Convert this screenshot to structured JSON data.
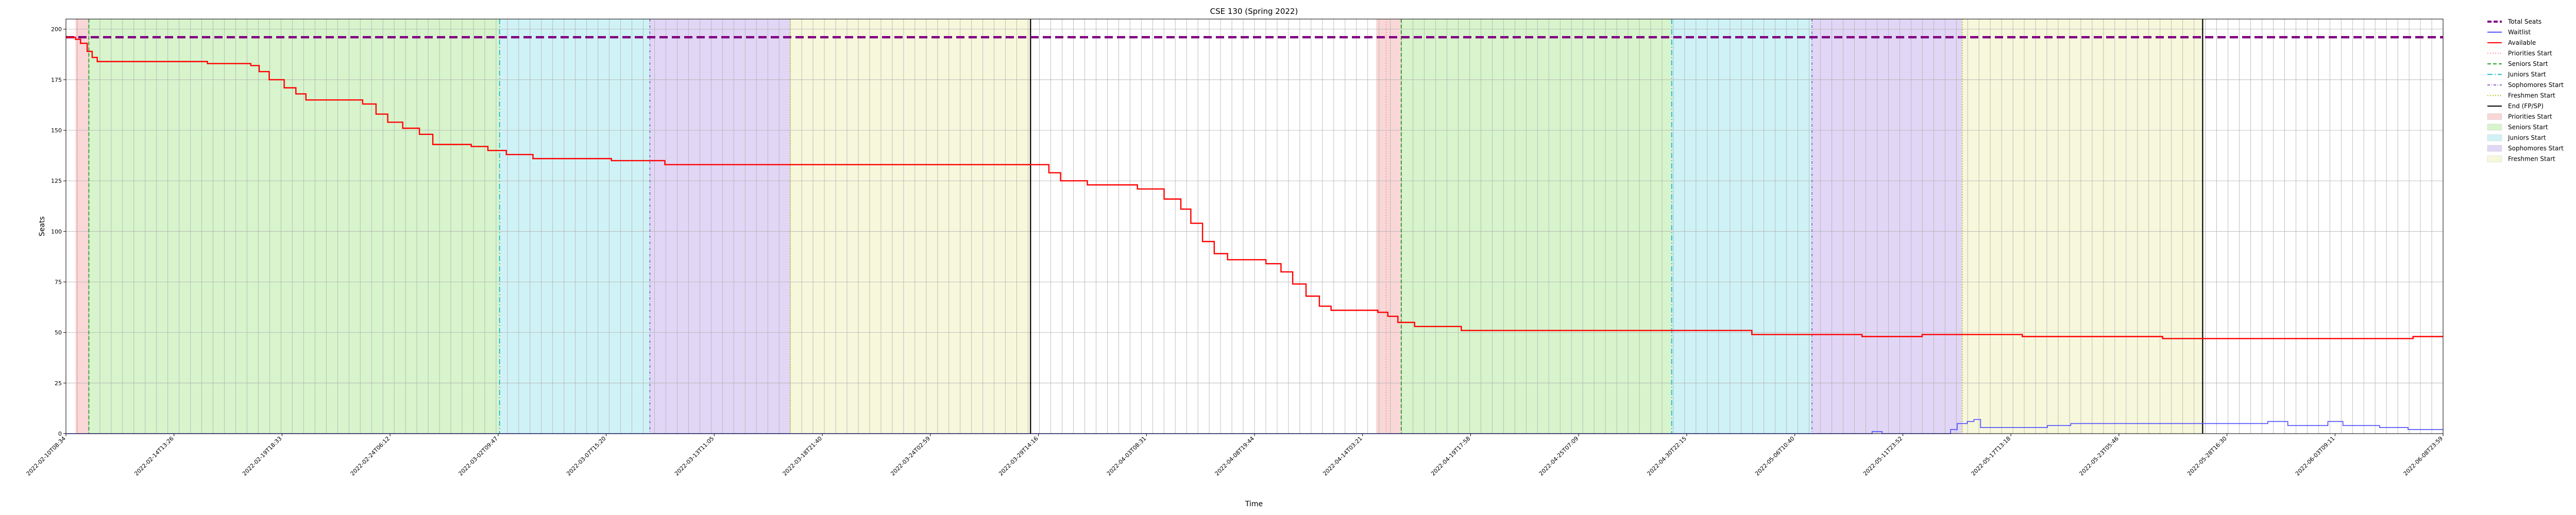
{
  "chart_data": {
    "type": "line",
    "title": "CSE 130 (Spring 2022)",
    "xlabel": "Time",
    "ylabel": "Seats",
    "ylim": [
      0,
      205
    ],
    "yticks": [
      0,
      25,
      50,
      75,
      100,
      125,
      150,
      175,
      200
    ],
    "grid": true,
    "legend_placement": "outside right, top",
    "x_tick_labels": [
      "2022-02-10T08:34",
      "2022-02-14T13:26",
      "2022-02-19T18:33",
      "2022-02-24T06:12",
      "2022-03-02T09:47",
      "2022-03-07T15:20",
      "2022-03-13T11:05",
      "2022-03-18T21:40",
      "2022-03-24T02:59",
      "2022-03-29T14:16",
      "2022-04-03T08:31",
      "2022-04-08T19:44",
      "2022-04-14T03:21",
      "2022-04-19T17:58",
      "2022-04-25T07:09",
      "2022-04-30T22:15",
      "2022-05-06T10:40",
      "2022-05-11T23:52",
      "2022-05-17T13:18",
      "2022-05-23T05:46",
      "2022-05-28T16:30",
      "2022-06-03T09:11",
      "2022-06-08T23:59"
    ],
    "x_domain": [
      "2022-02-10T08:34",
      "2022-06-08T23:59"
    ],
    "series": [
      {
        "name": "Total Seats",
        "color": "#800080",
        "style": "dashed-thick",
        "points": [
          [
            "2022-02-10T08:34",
            196
          ],
          [
            "2022-06-08T23:59",
            196
          ]
        ]
      },
      {
        "name": "Waitlist",
        "color": "#4b4bff",
        "style": "solid",
        "points": [
          [
            "2022-02-10T08:34",
            0
          ],
          [
            "2022-05-11T04:00",
            0
          ],
          [
            "2022-05-11T12:00",
            1
          ],
          [
            "2022-05-12T00:00",
            0
          ],
          [
            "2022-05-15T10:00",
            2
          ],
          [
            "2022-05-15T18:00",
            5
          ],
          [
            "2022-05-16T06:00",
            6
          ],
          [
            "2022-05-16T14:00",
            7
          ],
          [
            "2022-05-16T22:00",
            3
          ],
          [
            "2022-05-19T20:00",
            3
          ],
          [
            "2022-05-20T06:00",
            4
          ],
          [
            "2022-05-21T10:00",
            5
          ],
          [
            "2022-05-30T20:00",
            5
          ],
          [
            "2022-05-31T06:00",
            6
          ],
          [
            "2022-06-01T06:00",
            4
          ],
          [
            "2022-06-02T20:00",
            4
          ],
          [
            "2022-06-03T06:00",
            6
          ],
          [
            "2022-06-04T00:00",
            4
          ],
          [
            "2022-06-05T12:00",
            4
          ],
          [
            "2022-06-05T20:00",
            3
          ],
          [
            "2022-06-06T20:00",
            3
          ],
          [
            "2022-06-07T06:00",
            2
          ],
          [
            "2022-06-08T23:59",
            2
          ]
        ]
      },
      {
        "name": "Available",
        "color": "#ff0000",
        "style": "solid",
        "points": [
          [
            "2022-02-10T08:34",
            196
          ],
          [
            "2022-02-10T20:00",
            195
          ],
          [
            "2022-02-11T02:00",
            193
          ],
          [
            "2022-02-11T10:00",
            189
          ],
          [
            "2022-02-11T16:00",
            186
          ],
          [
            "2022-02-11T22:00",
            184
          ],
          [
            "2022-02-13T12:00",
            184
          ],
          [
            "2022-02-17T10:00",
            183
          ],
          [
            "2022-02-19T14:00",
            182
          ],
          [
            "2022-02-20T00:00",
            179
          ],
          [
            "2022-02-20T12:00",
            175
          ],
          [
            "2022-02-21T06:00",
            171
          ],
          [
            "2022-02-21T20:00",
            168
          ],
          [
            "2022-02-22T08:00",
            165
          ],
          [
            "2022-02-25T04:00",
            163
          ],
          [
            "2022-02-25T20:00",
            158
          ],
          [
            "2022-02-26T10:00",
            154
          ],
          [
            "2022-02-27T04:00",
            151
          ],
          [
            "2022-02-28T00:00",
            148
          ],
          [
            "2022-02-28T16:00",
            143
          ],
          [
            "2022-03-02T14:00",
            142
          ],
          [
            "2022-03-03T10:00",
            140
          ],
          [
            "2022-03-04T08:00",
            138
          ],
          [
            "2022-03-05T16:00",
            136
          ],
          [
            "2022-03-09T14:00",
            135
          ],
          [
            "2022-03-12T06:00",
            133
          ],
          [
            "2022-03-31T00:00",
            133
          ],
          [
            "2022-03-31T10:00",
            129
          ],
          [
            "2022-04-01T00:00",
            125
          ],
          [
            "2022-04-02T08:00",
            123
          ],
          [
            "2022-04-04T20:00",
            121
          ],
          [
            "2022-04-06T04:00",
            116
          ],
          [
            "2022-04-07T00:00",
            111
          ],
          [
            "2022-04-07T12:00",
            104
          ],
          [
            "2022-04-08T02:00",
            95
          ],
          [
            "2022-04-08T16:00",
            89
          ],
          [
            "2022-04-09T08:00",
            86
          ],
          [
            "2022-04-11T06:00",
            84
          ],
          [
            "2022-04-12T00:00",
            80
          ],
          [
            "2022-04-12T14:00",
            74
          ],
          [
            "2022-04-13T06:00",
            68
          ],
          [
            "2022-04-13T22:00",
            63
          ],
          [
            "2022-04-14T12:00",
            61
          ],
          [
            "2022-04-16T20:00",
            60
          ],
          [
            "2022-04-17T08:00",
            58
          ],
          [
            "2022-04-17T20:00",
            55
          ],
          [
            "2022-04-18T16:00",
            53
          ],
          [
            "2022-04-21T00:00",
            51
          ],
          [
            "2022-05-05T00:00",
            51
          ],
          [
            "2022-05-05T12:00",
            49
          ],
          [
            "2022-05-11T00:00",
            48
          ],
          [
            "2022-05-14T00:00",
            49
          ],
          [
            "2022-05-19T00:00",
            48
          ],
          [
            "2022-05-26T00:00",
            47
          ],
          [
            "2022-06-07T12:00",
            48
          ]
        ]
      }
    ],
    "vertical_markers": [
      {
        "name": "Priorities Start",
        "x": "2022-02-10T22:00",
        "color": "#ff9999",
        "style": "dotted"
      },
      {
        "name": "Seniors Start",
        "x": "2022-02-11T12:00",
        "color": "#2ca02c",
        "style": "dashed"
      },
      {
        "name": "Juniors Start",
        "x": "2022-03-04T00:00",
        "color": "#17becf",
        "style": "dashdot"
      },
      {
        "name": "Sophomores Start",
        "x": "2022-03-11T12:00",
        "color": "#9467bd",
        "style": "dashdot-fine"
      },
      {
        "name": "Freshmen Start",
        "x": "2022-03-18T12:00",
        "color": "#bcbd22",
        "style": "dotted"
      },
      {
        "name": "End (FP/SP)",
        "x": "2022-03-30T12:00",
        "color": "#000000",
        "style": "solid"
      },
      {
        "name": "Priorities Start",
        "x": "2022-04-17T06:00",
        "color": "#ff9999",
        "style": "dotted"
      },
      {
        "name": "Seniors Start",
        "x": "2022-04-18T00:00",
        "color": "#2ca02c",
        "style": "dashed"
      },
      {
        "name": "Juniors Start",
        "x": "2022-05-01T12:00",
        "color": "#17becf",
        "style": "dashdot"
      },
      {
        "name": "Sophomores Start",
        "x": "2022-05-08T12:00",
        "color": "#9467bd",
        "style": "dashdot-fine"
      },
      {
        "name": "Freshmen Start",
        "x": "2022-05-16T00:00",
        "color": "#bcbd22",
        "style": "dotted"
      },
      {
        "name": "End (FP/SP)",
        "x": "2022-05-28T00:00",
        "color": "#000000",
        "style": "solid"
      }
    ],
    "shaded_regions": [
      {
        "name": "Priorities Start",
        "from": "2022-02-10T20:00",
        "to": "2022-02-11T12:00",
        "color": "#f4b6b6"
      },
      {
        "name": "Seniors Start",
        "from": "2022-02-11T12:00",
        "to": "2022-03-04T00:00",
        "color": "#b7eba3"
      },
      {
        "name": "Juniors Start",
        "from": "2022-03-04T00:00",
        "to": "2022-03-11T12:00",
        "color": "#a8e8ee"
      },
      {
        "name": "Sophomores Start",
        "from": "2022-03-11T12:00",
        "to": "2022-03-18T12:00",
        "color": "#c9b5ec"
      },
      {
        "name": "Freshmen Start",
        "from": "2022-03-18T12:00",
        "to": "2022-03-30T12:00",
        "color": "#f1f1bf"
      },
      {
        "name": "Priorities Start",
        "from": "2022-04-16T18:00",
        "to": "2022-04-18T00:00",
        "color": "#f4b6b6"
      },
      {
        "name": "Seniors Start",
        "from": "2022-04-18T00:00",
        "to": "2022-05-01T12:00",
        "color": "#b7eba3"
      },
      {
        "name": "Juniors Start",
        "from": "2022-05-01T12:00",
        "to": "2022-05-08T12:00",
        "color": "#a8e8ee"
      },
      {
        "name": "Sophomores Start",
        "from": "2022-05-08T12:00",
        "to": "2022-05-16T00:00",
        "color": "#c9b5ec"
      },
      {
        "name": "Freshmen Start",
        "from": "2022-05-16T00:00",
        "to": "2022-05-28T00:00",
        "color": "#f1f1bf"
      }
    ],
    "legend": [
      {
        "label": "Total Seats",
        "kind": "line",
        "color": "#800080",
        "style": "dashed-thick"
      },
      {
        "label": "Waitlist",
        "kind": "line",
        "color": "#4b4bff",
        "style": "solid"
      },
      {
        "label": "Available",
        "kind": "line",
        "color": "#ff0000",
        "style": "solid"
      },
      {
        "label": "Priorities Start",
        "kind": "line",
        "color": "#ff9999",
        "style": "dotted"
      },
      {
        "label": "Seniors Start",
        "kind": "line",
        "color": "#2ca02c",
        "style": "dashed"
      },
      {
        "label": "Juniors Start",
        "kind": "line",
        "color": "#17becf",
        "style": "dashdot"
      },
      {
        "label": "Sophomores Start",
        "kind": "line",
        "color": "#9467bd",
        "style": "dashdot-fine"
      },
      {
        "label": "Freshmen Start",
        "kind": "line",
        "color": "#bcbd22",
        "style": "dotted"
      },
      {
        "label": "End (FP/SP)",
        "kind": "line",
        "color": "#000000",
        "style": "solid"
      },
      {
        "label": "Priorities Start",
        "kind": "patch",
        "color": "#f4b6b6"
      },
      {
        "label": "Seniors Start",
        "kind": "patch",
        "color": "#b7eba3"
      },
      {
        "label": "Juniors Start",
        "kind": "patch",
        "color": "#a8e8ee"
      },
      {
        "label": "Sophomores Start",
        "kind": "patch",
        "color": "#c9b5ec"
      },
      {
        "label": "Freshmen Start",
        "kind": "patch",
        "color": "#f1f1bf"
      }
    ]
  }
}
